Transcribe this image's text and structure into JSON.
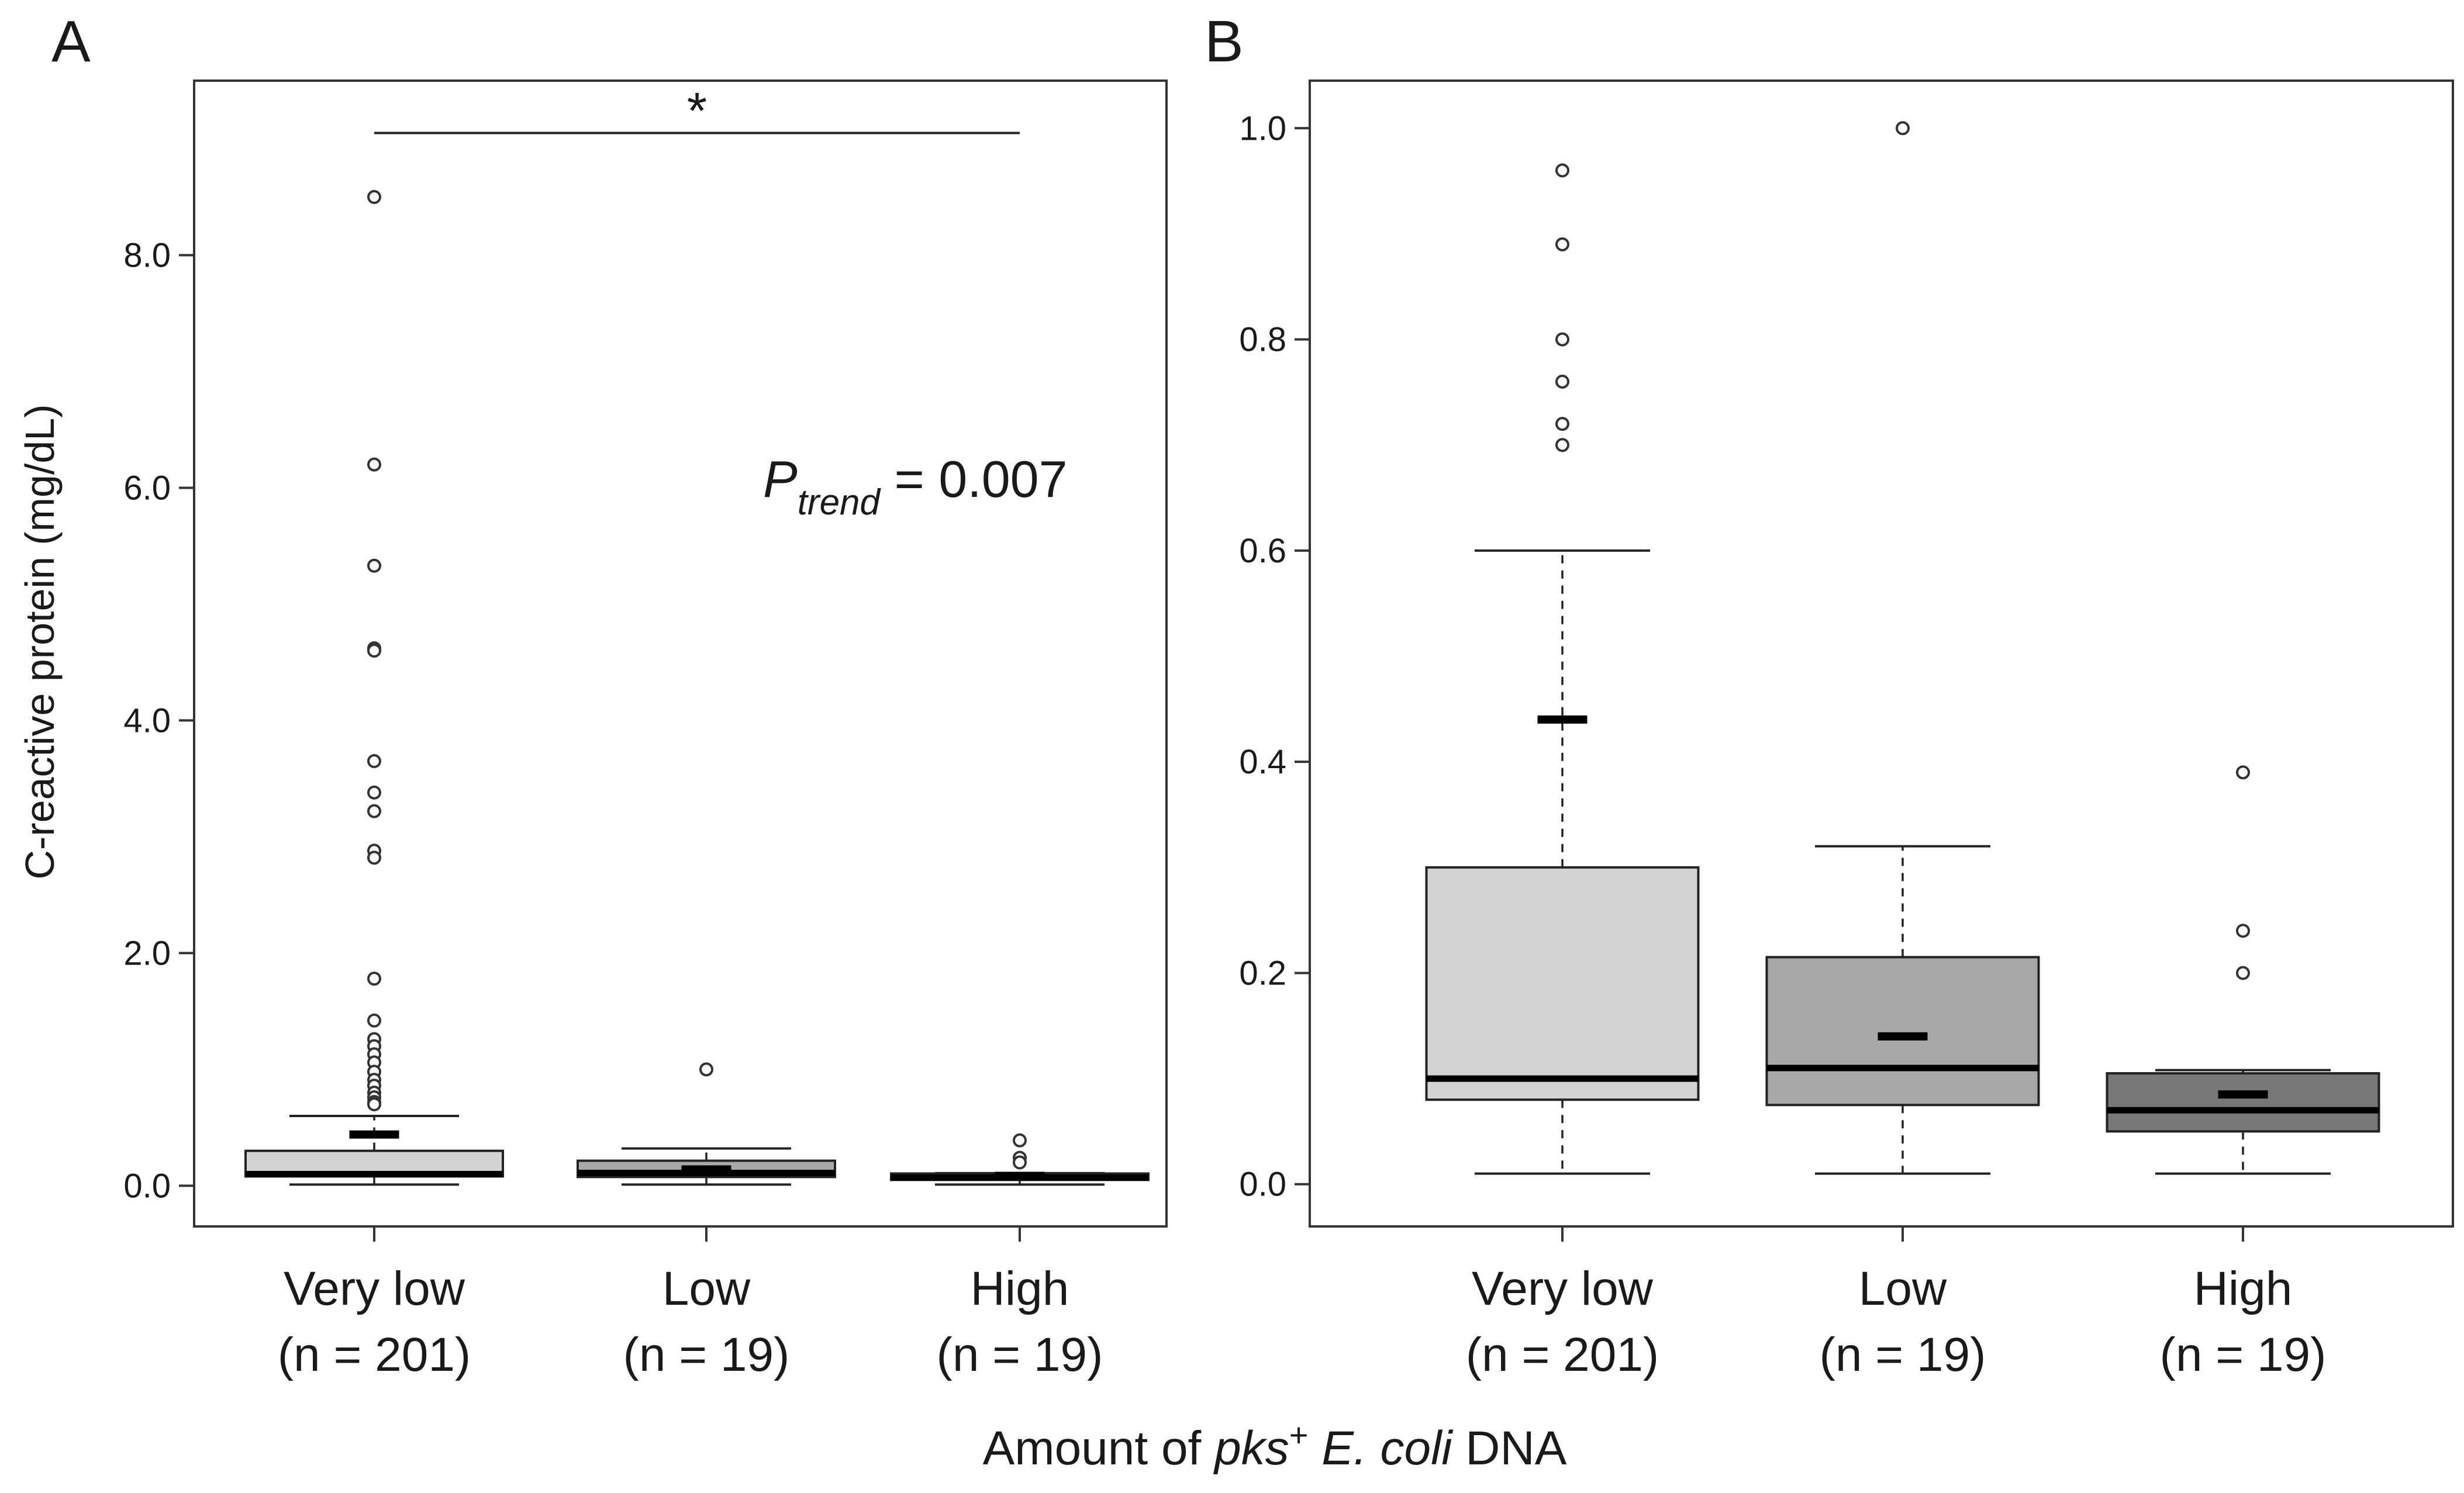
{
  "figure": {
    "xlabel_parts": [
      {
        "text": "Amount of ",
        "style": "normal"
      },
      {
        "text": "pks",
        "style": "italic"
      },
      {
        "text": "+",
        "style": "sup"
      },
      {
        "text": " E. coli",
        "style": "italic"
      },
      {
        "text": " DNA",
        "style": "normal"
      }
    ]
  },
  "chart_data": [
    {
      "panel": "A",
      "type": "box",
      "ylabel": "C-reactive protein (mg/dL)",
      "ylim": [
        -0.35,
        9.5
      ],
      "yticks": [
        0.0,
        2.0,
        4.0,
        6.0,
        8.0
      ],
      "ytick_labels": [
        "0.0",
        "2.0",
        "4.0",
        "6.0",
        "8.0"
      ],
      "categories": [
        {
          "label": "Very low",
          "n_label": "(n = 201)",
          "color": "#d3d3d3"
        },
        {
          "label": "Low",
          "n_label": "(n = 19)",
          "color": "#a8a8a8"
        },
        {
          "label": "High",
          "n_label": "(n = 19)",
          "color": "#777777"
        }
      ],
      "boxes": [
        {
          "whisker_low": 0.01,
          "q1": 0.08,
          "median": 0.1,
          "q3": 0.3,
          "whisker_high": 0.6,
          "mean": 0.44,
          "outliers": [
            8.5,
            6.2,
            5.33,
            4.62,
            4.6,
            3.65,
            3.38,
            3.22,
            2.88,
            2.82,
            1.78,
            1.42,
            1.26,
            1.2,
            1.13,
            1.06,
            0.98,
            0.91,
            0.86,
            0.8,
            0.76,
            0.72,
            0.7
          ]
        },
        {
          "whisker_low": 0.01,
          "q1": 0.075,
          "median": 0.11,
          "q3": 0.215,
          "whisker_high": 0.32,
          "mean": 0.14,
          "outliers": [
            1.0
          ]
        },
        {
          "whisker_low": 0.01,
          "q1": 0.05,
          "median": 0.07,
          "q3": 0.105,
          "whisker_high": 0.108,
          "mean": 0.085,
          "outliers": [
            0.39,
            0.24,
            0.2
          ]
        }
      ],
      "annotation": {
        "p_symbol": "P",
        "p_subscript": "trend",
        "p_text": " = 0.007"
      },
      "significance": {
        "from": 0,
        "to": 2,
        "y": 9.05,
        "label": "*"
      }
    },
    {
      "panel": "B",
      "type": "box",
      "ylabel": "",
      "ylim": [
        -0.04,
        1.045
      ],
      "yticks": [
        0.0,
        0.2,
        0.4,
        0.6,
        0.8,
        1.0
      ],
      "ytick_labels": [
        "0.0",
        "0.2",
        "0.4",
        "0.6",
        "0.8",
        "1.0"
      ],
      "categories": [
        {
          "label": "Very low",
          "n_label": "(n = 201)",
          "color": "#d3d3d3"
        },
        {
          "label": "Low",
          "n_label": "(n = 19)",
          "color": "#a8a8a8"
        },
        {
          "label": "High",
          "n_label": "(n = 19)",
          "color": "#777777"
        }
      ],
      "boxes": [
        {
          "whisker_low": 0.01,
          "q1": 0.08,
          "median": 0.1,
          "q3": 0.3,
          "whisker_high": 0.6,
          "mean": 0.44,
          "outliers": [
            0.96,
            0.89,
            0.8,
            0.76,
            0.72,
            0.7
          ]
        },
        {
          "whisker_low": 0.01,
          "q1": 0.075,
          "median": 0.11,
          "q3": 0.215,
          "whisker_high": 0.32,
          "mean": 0.14,
          "outliers": [
            1.0
          ]
        },
        {
          "whisker_low": 0.01,
          "q1": 0.05,
          "median": 0.07,
          "q3": 0.105,
          "whisker_high": 0.108,
          "mean": 0.085,
          "outliers": [
            0.39,
            0.24,
            0.2
          ]
        }
      ]
    }
  ]
}
